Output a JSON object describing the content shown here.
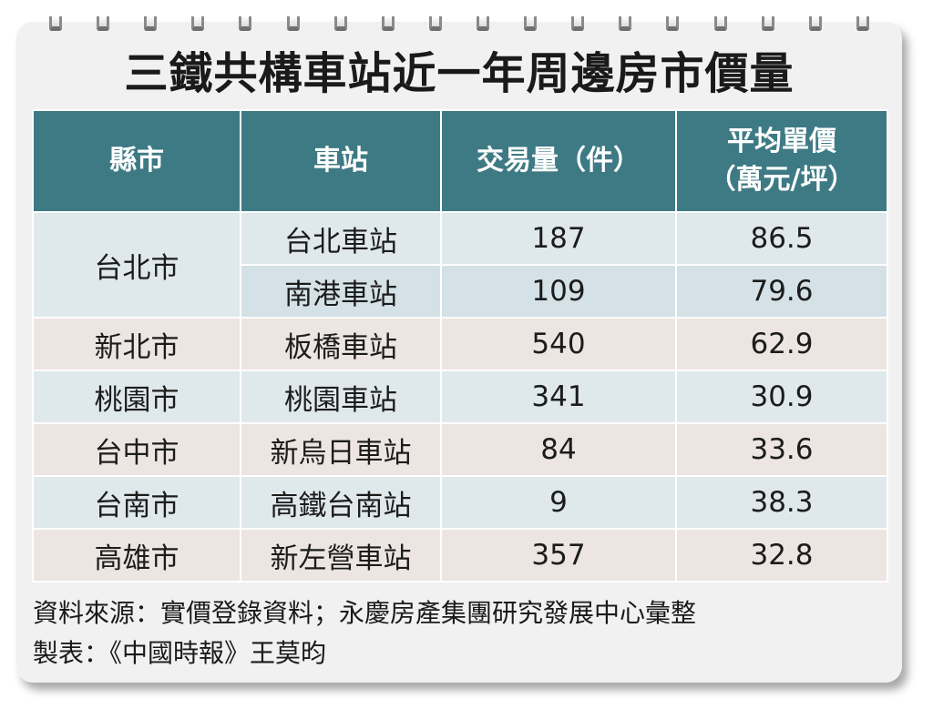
{
  "title": "三鐵共構車站近一年周邊房市價量",
  "table": {
    "headers": [
      "縣市",
      "車站",
      "交易量（件）",
      "平均單價",
      "（萬元/坪）"
    ],
    "rows": [
      {
        "city": "台北市",
        "station": "台北車站",
        "volume": "187",
        "price": "86.5"
      },
      {
        "city": "",
        "station": "南港車站",
        "volume": "109",
        "price": "79.6"
      },
      {
        "city": "新北市",
        "station": "板橋車站",
        "volume": "540",
        "price": "62.9"
      },
      {
        "city": "桃園市",
        "station": "桃園車站",
        "volume": "341",
        "price": "30.9"
      },
      {
        "city": "台中市",
        "station": "新烏日車站",
        "volume": "84",
        "price": "33.6"
      },
      {
        "city": "台南市",
        "station": "高鐵台南站",
        "volume": "9",
        "price": "38.3"
      },
      {
        "city": "高雄市",
        "station": "新左營車站",
        "volume": "357",
        "price": "32.8"
      }
    ]
  },
  "footer": {
    "source": "資料來源：實價登錄資料；永慶房產集團研究發展中心彙整",
    "credit": "製表：《中國時報》王莫昀"
  },
  "colors": {
    "header": "#3d7a84",
    "row_blue": "#dfe9ec",
    "row_beige": "#ece5e2",
    "card": "#f2f1f1"
  }
}
